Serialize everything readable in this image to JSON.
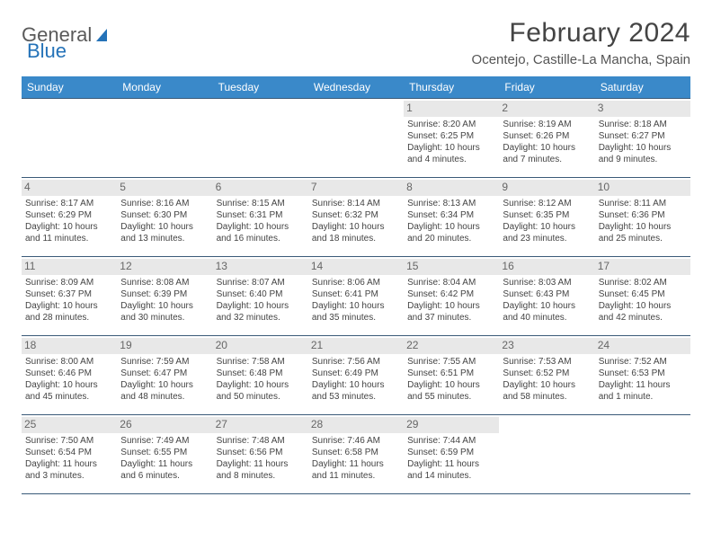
{
  "logo": {
    "text1": "General",
    "text2": "Blue"
  },
  "title": "February 2024",
  "location": "Ocentejo, Castille-La Mancha, Spain",
  "colors": {
    "header_bg": "#3a89c9",
    "border": "#3a5a78",
    "daynum_bg": "#e8e8e8"
  },
  "weekdays": [
    "Sunday",
    "Monday",
    "Tuesday",
    "Wednesday",
    "Thursday",
    "Friday",
    "Saturday"
  ],
  "weeks": [
    [
      null,
      null,
      null,
      null,
      {
        "n": "1",
        "sr": "Sunrise: 8:20 AM",
        "ss": "Sunset: 6:25 PM",
        "d1": "Daylight: 10 hours",
        "d2": "and 4 minutes."
      },
      {
        "n": "2",
        "sr": "Sunrise: 8:19 AM",
        "ss": "Sunset: 6:26 PM",
        "d1": "Daylight: 10 hours",
        "d2": "and 7 minutes."
      },
      {
        "n": "3",
        "sr": "Sunrise: 8:18 AM",
        "ss": "Sunset: 6:27 PM",
        "d1": "Daylight: 10 hours",
        "d2": "and 9 minutes."
      }
    ],
    [
      {
        "n": "4",
        "sr": "Sunrise: 8:17 AM",
        "ss": "Sunset: 6:29 PM",
        "d1": "Daylight: 10 hours",
        "d2": "and 11 minutes."
      },
      {
        "n": "5",
        "sr": "Sunrise: 8:16 AM",
        "ss": "Sunset: 6:30 PM",
        "d1": "Daylight: 10 hours",
        "d2": "and 13 minutes."
      },
      {
        "n": "6",
        "sr": "Sunrise: 8:15 AM",
        "ss": "Sunset: 6:31 PM",
        "d1": "Daylight: 10 hours",
        "d2": "and 16 minutes."
      },
      {
        "n": "7",
        "sr": "Sunrise: 8:14 AM",
        "ss": "Sunset: 6:32 PM",
        "d1": "Daylight: 10 hours",
        "d2": "and 18 minutes."
      },
      {
        "n": "8",
        "sr": "Sunrise: 8:13 AM",
        "ss": "Sunset: 6:34 PM",
        "d1": "Daylight: 10 hours",
        "d2": "and 20 minutes."
      },
      {
        "n": "9",
        "sr": "Sunrise: 8:12 AM",
        "ss": "Sunset: 6:35 PM",
        "d1": "Daylight: 10 hours",
        "d2": "and 23 minutes."
      },
      {
        "n": "10",
        "sr": "Sunrise: 8:11 AM",
        "ss": "Sunset: 6:36 PM",
        "d1": "Daylight: 10 hours",
        "d2": "and 25 minutes."
      }
    ],
    [
      {
        "n": "11",
        "sr": "Sunrise: 8:09 AM",
        "ss": "Sunset: 6:37 PM",
        "d1": "Daylight: 10 hours",
        "d2": "and 28 minutes."
      },
      {
        "n": "12",
        "sr": "Sunrise: 8:08 AM",
        "ss": "Sunset: 6:39 PM",
        "d1": "Daylight: 10 hours",
        "d2": "and 30 minutes."
      },
      {
        "n": "13",
        "sr": "Sunrise: 8:07 AM",
        "ss": "Sunset: 6:40 PM",
        "d1": "Daylight: 10 hours",
        "d2": "and 32 minutes."
      },
      {
        "n": "14",
        "sr": "Sunrise: 8:06 AM",
        "ss": "Sunset: 6:41 PM",
        "d1": "Daylight: 10 hours",
        "d2": "and 35 minutes."
      },
      {
        "n": "15",
        "sr": "Sunrise: 8:04 AM",
        "ss": "Sunset: 6:42 PM",
        "d1": "Daylight: 10 hours",
        "d2": "and 37 minutes."
      },
      {
        "n": "16",
        "sr": "Sunrise: 8:03 AM",
        "ss": "Sunset: 6:43 PM",
        "d1": "Daylight: 10 hours",
        "d2": "and 40 minutes."
      },
      {
        "n": "17",
        "sr": "Sunrise: 8:02 AM",
        "ss": "Sunset: 6:45 PM",
        "d1": "Daylight: 10 hours",
        "d2": "and 42 minutes."
      }
    ],
    [
      {
        "n": "18",
        "sr": "Sunrise: 8:00 AM",
        "ss": "Sunset: 6:46 PM",
        "d1": "Daylight: 10 hours",
        "d2": "and 45 minutes."
      },
      {
        "n": "19",
        "sr": "Sunrise: 7:59 AM",
        "ss": "Sunset: 6:47 PM",
        "d1": "Daylight: 10 hours",
        "d2": "and 48 minutes."
      },
      {
        "n": "20",
        "sr": "Sunrise: 7:58 AM",
        "ss": "Sunset: 6:48 PM",
        "d1": "Daylight: 10 hours",
        "d2": "and 50 minutes."
      },
      {
        "n": "21",
        "sr": "Sunrise: 7:56 AM",
        "ss": "Sunset: 6:49 PM",
        "d1": "Daylight: 10 hours",
        "d2": "and 53 minutes."
      },
      {
        "n": "22",
        "sr": "Sunrise: 7:55 AM",
        "ss": "Sunset: 6:51 PM",
        "d1": "Daylight: 10 hours",
        "d2": "and 55 minutes."
      },
      {
        "n": "23",
        "sr": "Sunrise: 7:53 AM",
        "ss": "Sunset: 6:52 PM",
        "d1": "Daylight: 10 hours",
        "d2": "and 58 minutes."
      },
      {
        "n": "24",
        "sr": "Sunrise: 7:52 AM",
        "ss": "Sunset: 6:53 PM",
        "d1": "Daylight: 11 hours",
        "d2": "and 1 minute."
      }
    ],
    [
      {
        "n": "25",
        "sr": "Sunrise: 7:50 AM",
        "ss": "Sunset: 6:54 PM",
        "d1": "Daylight: 11 hours",
        "d2": "and 3 minutes."
      },
      {
        "n": "26",
        "sr": "Sunrise: 7:49 AM",
        "ss": "Sunset: 6:55 PM",
        "d1": "Daylight: 11 hours",
        "d2": "and 6 minutes."
      },
      {
        "n": "27",
        "sr": "Sunrise: 7:48 AM",
        "ss": "Sunset: 6:56 PM",
        "d1": "Daylight: 11 hours",
        "d2": "and 8 minutes."
      },
      {
        "n": "28",
        "sr": "Sunrise: 7:46 AM",
        "ss": "Sunset: 6:58 PM",
        "d1": "Daylight: 11 hours",
        "d2": "and 11 minutes."
      },
      {
        "n": "29",
        "sr": "Sunrise: 7:44 AM",
        "ss": "Sunset: 6:59 PM",
        "d1": "Daylight: 11 hours",
        "d2": "and 14 minutes."
      },
      null,
      null
    ]
  ]
}
